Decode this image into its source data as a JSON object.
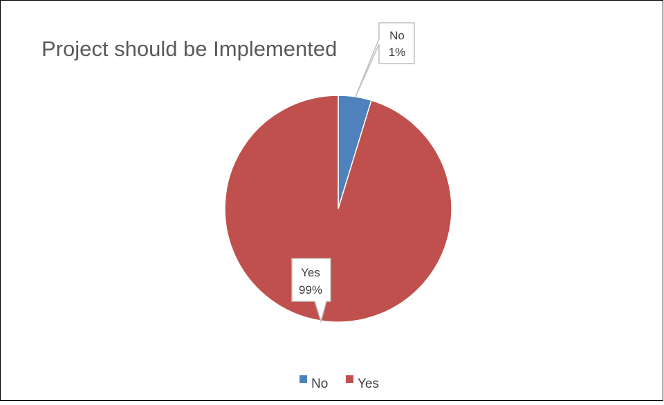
{
  "chart_data": {
    "type": "pie",
    "title": "Project should be Implemented",
    "categories": [
      "No",
      "Yes"
    ],
    "values": [
      1,
      99
    ],
    "display_angle_degrees": [
      17,
      343
    ],
    "data_labels": [
      {
        "category": "No",
        "percent": "1%"
      },
      {
        "category": "Yes",
        "percent": "99%"
      }
    ],
    "colors": [
      "#4f81bd",
      "#c0504d"
    ],
    "legend_position": "bottom",
    "legend": [
      "No",
      "Yes"
    ]
  }
}
